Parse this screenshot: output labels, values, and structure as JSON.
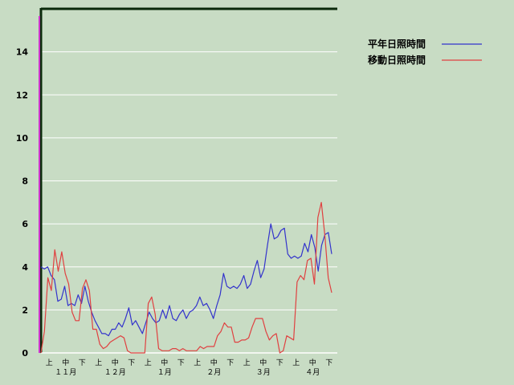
{
  "chart_data": {
    "type": "line",
    "ylim": [
      0,
      16
    ],
    "y_ticks": [
      0,
      2,
      4,
      6,
      8,
      10,
      12,
      14
    ],
    "grid": true,
    "legend_position": "top-right",
    "period_labels": [
      "上",
      "中",
      "下",
      "上",
      "中",
      "下",
      "上",
      "中",
      "下",
      "上",
      "中",
      "下",
      "上",
      "中",
      "下",
      "上",
      "中",
      "下"
    ],
    "month_labels": [
      "１１月",
      "１２月",
      "１月",
      "２月",
      "３月",
      "４月"
    ],
    "colors": {
      "normal": "#3333cc",
      "moving": "#e04040",
      "background": "#c8dcc4",
      "grid": "#ffffff"
    },
    "series": [
      {
        "name": "平年日照時間",
        "color": "#3333cc",
        "values": [
          4.0,
          3.9,
          4.0,
          3.6,
          3.4,
          2.4,
          2.5,
          3.1,
          2.2,
          2.3,
          2.2,
          2.7,
          2.3,
          3.1,
          2.4,
          1.9,
          1.5,
          1.2,
          0.9,
          0.9,
          0.8,
          1.1,
          1.1,
          1.4,
          1.2,
          1.6,
          2.1,
          1.3,
          1.5,
          1.2,
          0.9,
          1.4,
          1.9,
          1.6,
          1.4,
          1.5,
          2.0,
          1.6,
          2.2,
          1.6,
          1.5,
          1.8,
          2.0,
          1.6,
          1.9,
          2.0,
          2.2,
          2.6,
          2.2,
          2.3,
          2.0,
          1.6,
          2.2,
          2.7,
          3.7,
          3.1,
          3.0,
          3.1,
          3.0,
          3.2,
          3.6,
          3.0,
          3.2,
          3.8,
          4.3,
          3.5,
          3.9,
          5.0,
          6.0,
          5.3,
          5.4,
          5.7,
          5.8,
          4.6,
          4.4,
          4.5,
          4.4,
          4.5,
          5.1,
          4.7,
          5.5,
          4.9,
          3.8,
          5.0,
          5.5,
          5.6,
          4.6
        ]
      },
      {
        "name": "移動日照時間",
        "color": "#e04040",
        "values": [
          0.0,
          1.0,
          3.5,
          2.9,
          4.8,
          3.8,
          4.7,
          3.7,
          3.2,
          1.9,
          1.5,
          1.5,
          3.0,
          3.4,
          2.9,
          1.1,
          1.1,
          0.4,
          0.2,
          0.3,
          0.5,
          0.6,
          0.7,
          0.8,
          0.7,
          0.1,
          0.0,
          0.0,
          0.0,
          0.0,
          0.0,
          2.3,
          2.6,
          1.8,
          0.2,
          0.1,
          0.1,
          0.1,
          0.2,
          0.2,
          0.1,
          0.2,
          0.1,
          0.1,
          0.1,
          0.1,
          0.3,
          0.2,
          0.3,
          0.3,
          0.3,
          0.8,
          1.0,
          1.4,
          1.2,
          1.2,
          0.5,
          0.5,
          0.6,
          0.6,
          0.7,
          1.2,
          1.6,
          1.6,
          1.6,
          1.0,
          0.6,
          0.8,
          0.9,
          0.0,
          0.1,
          0.8,
          0.7,
          0.6,
          3.3,
          3.6,
          3.4,
          4.3,
          4.4,
          3.2,
          6.3,
          7.0,
          5.5,
          3.5,
          2.8
        ]
      }
    ]
  }
}
